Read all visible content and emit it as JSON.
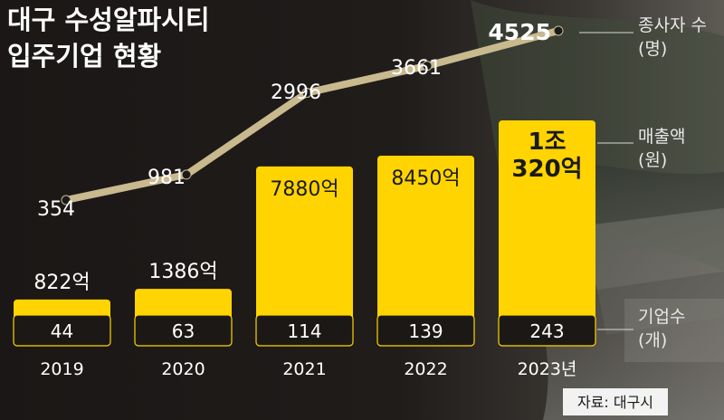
{
  "title_lines": [
    "대구 수성알파시티",
    "입주기업 현황"
  ],
  "source": "자료: 대구시",
  "colors": {
    "background": "#1e1a18",
    "bar": "#ffd400",
    "line": "#c8b98e",
    "text_dark": "#1a1a1a",
    "text_light": "#ffffff",
    "legend_text": "#e8e8e8"
  },
  "legend": {
    "employees": {
      "name": "종사자 수",
      "unit": "(명)"
    },
    "revenue": {
      "name": "매출액",
      "unit": "(원)"
    },
    "companies": {
      "name": "기업수",
      "unit": "(개)"
    }
  },
  "chart_data": {
    "type": "bar",
    "title": "대구 수성알파시티 입주기업 현황",
    "categories": [
      "2019",
      "2020",
      "2021",
      "2022",
      "2023년"
    ],
    "series": [
      {
        "name": "매출액",
        "values": [
          822,
          1386,
          7880,
          8450,
          10320
        ],
        "labels": [
          "822억",
          "1386억",
          "7880억",
          "8450억",
          "1조\n320억"
        ]
      },
      {
        "name": "종사자 수",
        "type": "line",
        "values": [
          354,
          981,
          2996,
          3661,
          4525
        ]
      },
      {
        "name": "기업수",
        "values": [
          44,
          63,
          114,
          139,
          243
        ]
      }
    ]
  }
}
